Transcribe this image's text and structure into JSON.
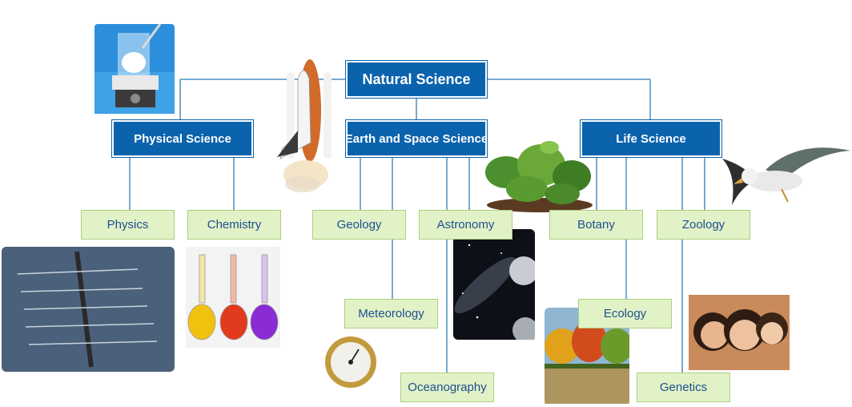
{
  "root": {
    "label": "Natural Science"
  },
  "branches": {
    "physical": {
      "label": "Physical Science",
      "children": {
        "physics": "Physics",
        "chemistry": "Chemistry"
      }
    },
    "earth": {
      "label": "Earth and Space Science",
      "children": {
        "geology": "Geology",
        "astronomy": "Astronomy",
        "meteorology": "Meteorology",
        "oceanography": "Oceanography"
      }
    },
    "life": {
      "label": "Life Science",
      "children": {
        "botany": "Botany",
        "zoology": "Zoology",
        "ecology": "Ecology",
        "genetics": "Genetics"
      }
    }
  },
  "colors": {
    "branch_box": "#0b63ad",
    "leaf_box": "#e2f2c7",
    "leaf_text": "#1d4f8f",
    "connector": "#4a8fc4"
  },
  "pictures": [
    "beaker-hotplate",
    "space-shuttle",
    "leafy-plant",
    "seabird",
    "rowing-crew",
    "chemistry-flasks",
    "galaxy-moon",
    "barometer",
    "autumn-lake",
    "family-portrait"
  ]
}
